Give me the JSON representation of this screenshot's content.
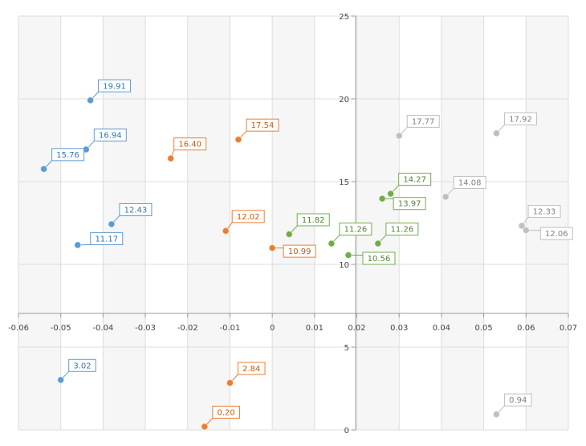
{
  "chart_data": {
    "type": "scatter",
    "title": "",
    "xlabel": "",
    "ylabel": "",
    "xlim": [
      -0.06,
      0.07
    ],
    "ylim": [
      0,
      25
    ],
    "x_ticks": [
      -0.06,
      -0.05,
      -0.04,
      -0.03,
      -0.02,
      -0.01,
      0,
      0.01,
      0.02,
      0.03,
      0.04,
      0.05,
      0.06,
      0.07
    ],
    "x_tick_labels": [
      "-0.06",
      "-0.05",
      "-0.04",
      "-0.03",
      "-0.02",
      "-0.01",
      "0",
      "0.01",
      "0.02",
      "0.03",
      "0.04",
      "0.05",
      "0.06",
      "0.07"
    ],
    "y_ticks": [
      0,
      5,
      10,
      15,
      20,
      25
    ],
    "y_tick_labels": [
      "0",
      "5",
      "10",
      "15",
      "20",
      "25"
    ],
    "grid": true,
    "legend": "none",
    "series": [
      {
        "color": "#5b9bd5",
        "label_color": "#2e75b6",
        "points": [
          {
            "x": -0.043,
            "y": 19.91,
            "label": "19.91"
          },
          {
            "x": -0.044,
            "y": 16.94,
            "label": "16.94"
          },
          {
            "x": -0.054,
            "y": 15.76,
            "label": "15.76"
          },
          {
            "x": -0.038,
            "y": 12.43,
            "label": "12.43"
          },
          {
            "x": -0.046,
            "y": 11.17,
            "label": "11.17"
          },
          {
            "x": -0.05,
            "y": 3.02,
            "label": "3.02"
          }
        ]
      },
      {
        "color": "#ed7d31",
        "label_color": "#c55a11",
        "points": [
          {
            "x": -0.008,
            "y": 17.54,
            "label": "17.54"
          },
          {
            "x": -0.024,
            "y": 16.4,
            "label": "16.40"
          },
          {
            "x": -0.011,
            "y": 12.02,
            "label": "12.02"
          },
          {
            "x": 0.0,
            "y": 10.99,
            "label": "10.99"
          },
          {
            "x": -0.01,
            "y": 2.84,
            "label": "2.84"
          },
          {
            "x": -0.016,
            "y": 0.2,
            "label": "0.20"
          }
        ]
      },
      {
        "color": "#70ad47",
        "label_color": "#548235",
        "points": [
          {
            "x": 0.028,
            "y": 14.27,
            "label": "14.27"
          },
          {
            "x": 0.026,
            "y": 13.97,
            "label": "13.97"
          },
          {
            "x": 0.004,
            "y": 11.82,
            "label": "11.82"
          },
          {
            "x": 0.014,
            "y": 11.26,
            "label": "11.26"
          },
          {
            "x": 0.025,
            "y": 11.26,
            "label": "11.26"
          },
          {
            "x": 0.018,
            "y": 10.56,
            "label": "10.56"
          }
        ]
      },
      {
        "color": "#bfbfbf",
        "label_color": "#7f7f7f",
        "points": [
          {
            "x": 0.03,
            "y": 17.77,
            "label": "17.77"
          },
          {
            "x": 0.053,
            "y": 17.92,
            "label": "17.92"
          },
          {
            "x": 0.041,
            "y": 14.08,
            "label": "14.08"
          },
          {
            "x": 0.059,
            "y": 12.33,
            "label": "12.33"
          },
          {
            "x": 0.06,
            "y": 12.06,
            "label": "12.06"
          },
          {
            "x": 0.053,
            "y": 0.94,
            "label": "0.94"
          }
        ]
      }
    ]
  }
}
